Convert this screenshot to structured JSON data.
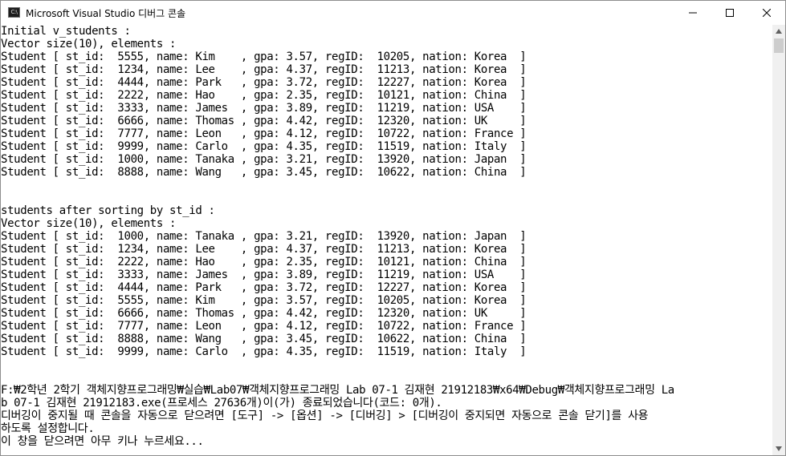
{
  "window": {
    "icon_text": "C:\\",
    "title": "Microsoft Visual Studio 디버그 콘솔"
  },
  "icons": {
    "app": "console-app-icon",
    "minimize": "minimize-icon",
    "maximize": "maximize-icon",
    "close": "close-icon",
    "scroll_up": "chevron-up-icon",
    "scroll_down": "chevron-down-icon"
  },
  "console": {
    "lines": [
      "Initial v_students :",
      "Vector size(10), elements :",
      "Student [ st_id:  5555, name: Kim    , gpa: 3.57, regID:  10205, nation: Korea  ]",
      "Student [ st_id:  1234, name: Lee    , gpa: 4.37, regID:  11213, nation: Korea  ]",
      "Student [ st_id:  4444, name: Park   , gpa: 3.72, regID:  12227, nation: Korea  ]",
      "Student [ st_id:  2222, name: Hao    , gpa: 2.35, regID:  10121, nation: China  ]",
      "Student [ st_id:  3333, name: James  , gpa: 3.89, regID:  11219, nation: USA    ]",
      "Student [ st_id:  6666, name: Thomas , gpa: 4.42, regID:  12320, nation: UK     ]",
      "Student [ st_id:  7777, name: Leon   , gpa: 4.12, regID:  10722, nation: France ]",
      "Student [ st_id:  9999, name: Carlo  , gpa: 4.35, regID:  11519, nation: Italy  ]",
      "Student [ st_id:  1000, name: Tanaka , gpa: 3.21, regID:  13920, nation: Japan  ]",
      "Student [ st_id:  8888, name: Wang   , gpa: 3.45, regID:  10622, nation: China  ]",
      "",
      "",
      "students after sorting by st_id :",
      "Vector size(10), elements :",
      "Student [ st_id:  1000, name: Tanaka , gpa: 3.21, regID:  13920, nation: Japan  ]",
      "Student [ st_id:  1234, name: Lee    , gpa: 4.37, regID:  11213, nation: Korea  ]",
      "Student [ st_id:  2222, name: Hao    , gpa: 2.35, regID:  10121, nation: China  ]",
      "Student [ st_id:  3333, name: James  , gpa: 3.89, regID:  11219, nation: USA    ]",
      "Student [ st_id:  4444, name: Park   , gpa: 3.72, regID:  12227, nation: Korea  ]",
      "Student [ st_id:  5555, name: Kim    , gpa: 3.57, regID:  10205, nation: Korea  ]",
      "Student [ st_id:  6666, name: Thomas , gpa: 4.42, regID:  12320, nation: UK     ]",
      "Student [ st_id:  7777, name: Leon   , gpa: 4.12, regID:  10722, nation: France ]",
      "Student [ st_id:  8888, name: Wang   , gpa: 3.45, regID:  10622, nation: China  ]",
      "Student [ st_id:  9999, name: Carlo  , gpa: 4.35, regID:  11519, nation: Italy  ]",
      "",
      "",
      "F:₩2학년 2학기 객체지향프로그래밍₩실습₩Lab07₩객체지향프로그래밍 Lab 07-1 김재현 21912183₩x64₩Debug₩객체지향프로그래밍 La",
      "b 07-1 김재현 21912183.exe(프로세스 27636개)이(가) 종료되었습니다(코드: 0개).",
      "디버깅이 중지될 때 콘솔을 자동으로 닫으려면 [도구] -> [옵션] -> [디버깅] > [디버깅이 중지되면 자동으로 콘솔 닫기]를 사용",
      "하도록 설정합니다.",
      "이 창을 닫으려면 아무 키나 누르세요..."
    ]
  }
}
